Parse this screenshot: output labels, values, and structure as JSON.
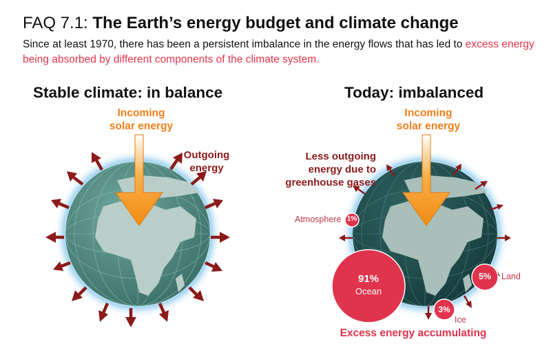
{
  "header": {
    "faq_label": "FAQ 7.1:",
    "title": "The Earth’s energy budget and climate change",
    "subtitle_plain": "Since at least 1970, there has been a persistent imbalance in the energy flows that has led to ",
    "subtitle_highlight": "excess energy being absorbed by different components of the climate system."
  },
  "left_panel": {
    "title": "Stable climate: in balance",
    "incoming_line1": "Incoming",
    "incoming_line2": "solar energy",
    "outgoing_line1": "Outgoing",
    "outgoing_line2": "energy"
  },
  "right_panel": {
    "title": "Today: imbalanced",
    "incoming_line1": "Incoming",
    "incoming_line2": "solar energy",
    "less_line1": "Less outgoing",
    "less_line2": "energy due to",
    "less_line3": "greenhouse gases",
    "components": [
      {
        "name": "Ocean",
        "percent": "91%"
      },
      {
        "name": "Land",
        "percent": "5%"
      },
      {
        "name": "Ice",
        "percent": "3%"
      },
      {
        "name": "Atmosphere",
        "percent": "1%"
      }
    ],
    "footer": "Excess energy accumulating"
  },
  "colors": {
    "solar_arrow": "#f59a1c",
    "outgoing_arrow": "#8b1a1a",
    "excess_red": "#e0344c",
    "ocean_globe_left": "#4f8a80",
    "ocean_globe_right": "#1f4a4a",
    "land": "#b9cec9",
    "halo": "#a9d8f2"
  }
}
